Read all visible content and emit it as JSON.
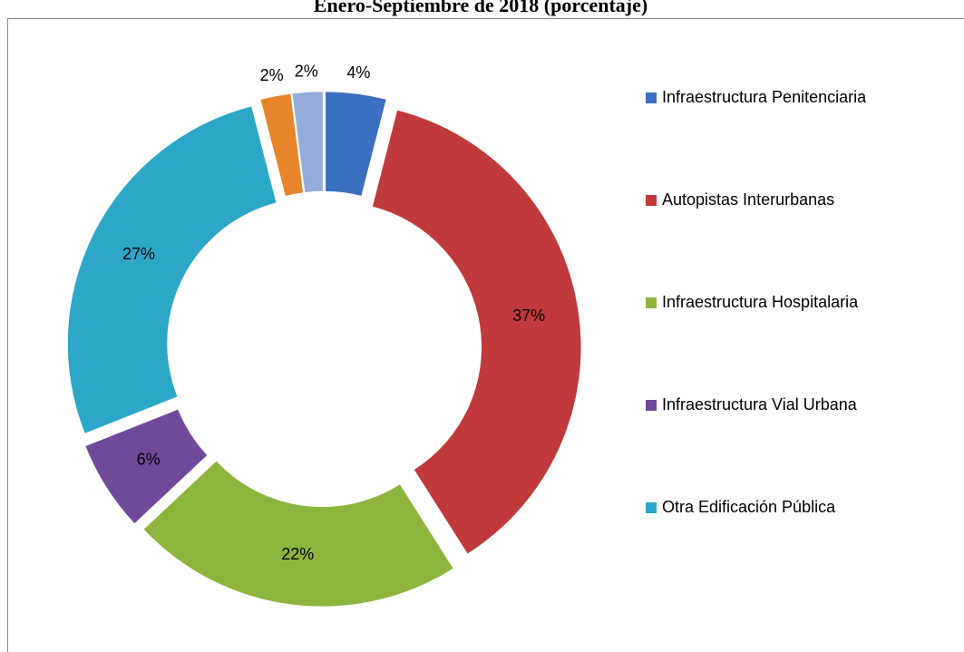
{
  "chart_data": {
    "type": "donut",
    "title": "Enero-Septiembre de 2018 (porcentaje)",
    "categories": [
      "Infraestructura Penitenciaria",
      "Autopistas Interurbanas",
      "Infraestructura Hospitalaria",
      "Infraestructura Vial Urbana",
      "Otra Edificación Pública",
      null,
      null
    ],
    "values": [
      4,
      37,
      22,
      6,
      27,
      2,
      2
    ],
    "value_labels": [
      "4%",
      "37%",
      "22%",
      "6%",
      "27%",
      "2%",
      "2%"
    ],
    "colors": [
      "#3b6fbf",
      "#c0393b",
      "#8db53e",
      "#6f4a9b",
      "#2ca7c8",
      "#e8852b",
      "#93acd9"
    ],
    "legend": "right"
  }
}
